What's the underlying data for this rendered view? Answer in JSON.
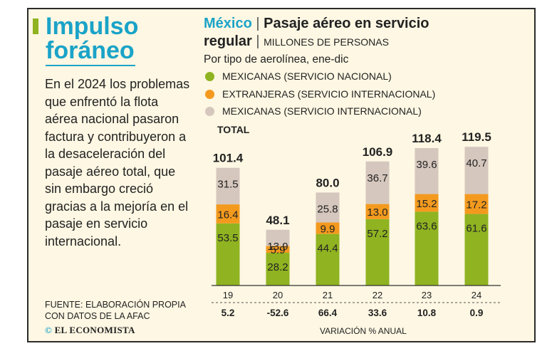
{
  "headline": {
    "line1": "Impulso",
    "line2": "foráneo"
  },
  "body": "En el 2024 los problemas que enfrentó la flota aérea nacional pasaron factura y contribuyeron a la desaceleración del pasaje aéreo total, que sin embargo creció gracias a la mejoría en el pasaje en servicio internacional.",
  "source": "Fuente: Elaboración propia con datos de la AFAC",
  "logo": {
    "mark": "©",
    "name": "EL ECONOMISTA"
  },
  "colors": {
    "accent": "#1aa3c8",
    "nacional": "#8fb321",
    "extranjeras": "#f39a1e",
    "internacional_mx": "#d5c7bd",
    "card_bg": "#fdf7e3"
  },
  "chart_data": {
    "type": "bar",
    "stacked": true,
    "title": {
      "country": "México",
      "separator": "|",
      "main": "Pasaje aéreo en servicio",
      "main2": "regular",
      "unit": "Millones de personas"
    },
    "subtitle": "Por tipo de aerolínea, ene-dic",
    "total_label": "Total",
    "categories": [
      "19",
      "20",
      "21",
      "22",
      "23",
      "24"
    ],
    "series": [
      {
        "name": "Mexicanas (servicio nacional)",
        "key": "nacional",
        "values": [
          53.5,
          28.2,
          44.4,
          57.2,
          63.6,
          61.6
        ]
      },
      {
        "name": "Extranjeras (servicio internacional)",
        "key": "extranjeras",
        "values": [
          16.4,
          5.9,
          9.9,
          13.0,
          15.2,
          17.2
        ]
      },
      {
        "name": "Mexicanas (servicio internacional)",
        "key": "internacional_mx",
        "values": [
          31.5,
          13.9,
          25.8,
          36.7,
          39.6,
          40.7
        ]
      }
    ],
    "labels": {
      "nacional": [
        "53.5",
        "28.2",
        "44.4",
        "57.2",
        "63.6",
        "61.6"
      ],
      "extranjeras": [
        "16.4",
        "5.9",
        "9.9",
        "13.0",
        "15.2",
        "17.2"
      ],
      "internacional_mx": [
        "31.5",
        "13.9",
        "25.8",
        "36.7",
        "39.6",
        "40.7"
      ]
    },
    "totals": [
      "101.4",
      "48.1",
      "80.0",
      "106.9",
      "118.4",
      "119.5"
    ],
    "variation": {
      "label": "Variación % anual",
      "values": [
        "5.2",
        "-52.6",
        "66.4",
        "33.6",
        "10.8",
        "0.9"
      ]
    },
    "ylim": [
      0,
      120
    ]
  }
}
